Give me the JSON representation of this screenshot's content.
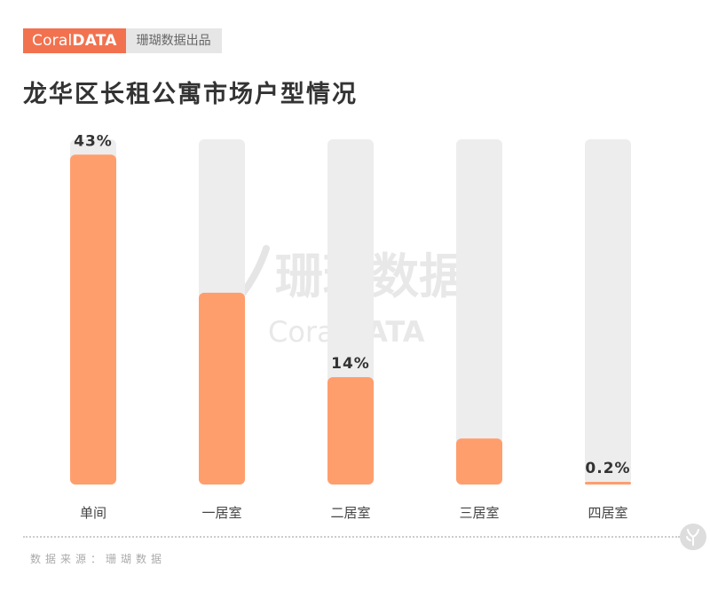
{
  "brand": {
    "logo_light": "Coral",
    "logo_bold": "DATA",
    "tag": "珊瑚数据出品"
  },
  "header": {
    "title": "龙华区长租公寓市场户型情况"
  },
  "watermark": {
    "cn": "珊瑚数据",
    "en_light": "Coral",
    "en_bold": "DATA"
  },
  "chart_data": {
    "type": "bar",
    "categories": [
      "单间",
      "一居室",
      "二居室",
      "三居室",
      "四居室"
    ],
    "values": [
      43,
      25,
      14,
      6,
      0.2
    ],
    "data_labels": [
      "43%",
      "",
      "14%",
      "",
      "0.2%"
    ],
    "ylim": [
      0,
      45
    ],
    "grid": false,
    "legend": "none",
    "colors": {
      "bar": "#ff9e6d",
      "track": "#ededed"
    }
  },
  "footer": {
    "source": "数据来源：珊瑚数据"
  }
}
